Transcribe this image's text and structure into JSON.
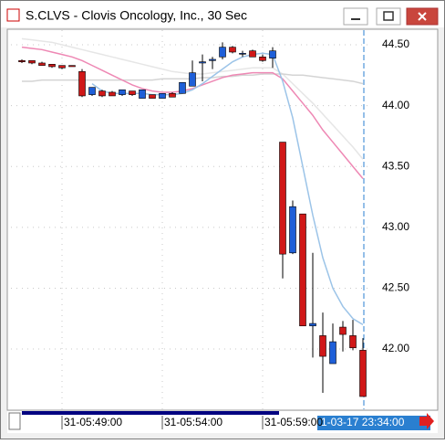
{
  "window_title": "S.CLVS - Clovis Oncology, Inc., 30 Sec",
  "cursor_label": "1-03-17 23:34:00",
  "chart_data": {
    "type": "candlestick",
    "categories": [
      null,
      null,
      null,
      null,
      "31-05:49:00",
      null,
      null,
      null,
      null,
      null,
      null,
      null,
      null,
      null,
      "31-05:54:00",
      null,
      null,
      null,
      null,
      null,
      null,
      null,
      null,
      null,
      "31-05:59:00",
      null,
      null,
      null,
      null,
      null,
      null,
      null,
      null,
      null,
      null
    ],
    "open": [
      44.37,
      44.37,
      44.35,
      44.34,
      44.33,
      44.33,
      44.28,
      44.09,
      44.12,
      44.11,
      44.09,
      44.12,
      44.06,
      44.09,
      44.06,
      44.1,
      44.1,
      44.16,
      44.35,
      44.37,
      44.4,
      44.48,
      44.43,
      44.45,
      44.4,
      44.39,
      43.7,
      42.79,
      43.11,
      42.19,
      42.11,
      41.88,
      42.18,
      42.11,
      41.99
    ],
    "high": [
      44.38,
      44.37,
      44.36,
      44.34,
      44.33,
      44.33,
      44.3,
      44.15,
      44.13,
      44.12,
      44.13,
      44.12,
      44.13,
      44.09,
      44.1,
      44.11,
      44.19,
      44.37,
      44.42,
      44.4,
      44.52,
      44.49,
      44.45,
      44.46,
      44.42,
      44.48,
      43.7,
      43.22,
      43.11,
      42.79,
      42.3,
      42.21,
      42.23,
      42.24,
      42.09
    ],
    "low": [
      44.35,
      44.34,
      44.33,
      44.31,
      44.3,
      44.32,
      44.07,
      44.08,
      44.07,
      44.08,
      44.08,
      44.08,
      44.06,
      44.06,
      44.06,
      44.07,
      44.1,
      44.16,
      44.2,
      44.3,
      44.38,
      44.43,
      44.4,
      44.4,
      44.36,
      44.31,
      42.58,
      42.78,
      42.19,
      41.93,
      41.64,
      41.88,
      41.98,
      41.99,
      41.61
    ],
    "close": [
      44.36,
      44.35,
      44.33,
      44.32,
      44.31,
      44.32,
      44.08,
      44.15,
      44.08,
      44.08,
      44.13,
      44.09,
      44.13,
      44.06,
      44.1,
      44.07,
      44.19,
      44.27,
      44.36,
      44.38,
      44.48,
      44.44,
      44.43,
      44.4,
      44.37,
      44.45,
      42.78,
      43.17,
      42.19,
      42.21,
      41.94,
      42.06,
      42.12,
      42.01,
      41.61
    ],
    "up_color": "#1e5fd8",
    "down_color": "#d01818",
    "lines": [
      {
        "color": "#e6e6e6",
        "values": [
          44.55,
          44.54,
          44.53,
          44.52,
          44.5,
          44.48,
          44.46,
          44.44,
          44.42,
          44.4,
          44.38,
          44.36,
          44.34,
          44.32,
          44.3,
          44.28,
          44.27,
          44.26,
          44.26,
          44.27,
          44.28,
          44.29,
          44.3,
          44.31,
          44.31,
          44.31,
          44.26,
          44.18,
          44.1,
          44.02,
          43.93,
          43.84,
          43.75,
          43.66,
          43.56
        ]
      },
      {
        "color": "#d4d4d4",
        "values": [
          44.2,
          44.2,
          44.21,
          44.21,
          44.21,
          44.21,
          44.21,
          44.21,
          44.21,
          44.21,
          44.21,
          44.21,
          44.21,
          44.21,
          44.22,
          44.22,
          44.22,
          44.22,
          44.23,
          44.23,
          44.24,
          44.24,
          44.25,
          44.25,
          44.26,
          44.26,
          44.26,
          44.25,
          44.25,
          44.24,
          44.23,
          44.22,
          44.21,
          44.2,
          44.18
        ]
      },
      {
        "color": "#ee88b4",
        "values": [
          44.48,
          44.47,
          44.46,
          44.44,
          44.42,
          44.4,
          44.37,
          44.33,
          44.29,
          44.25,
          44.21,
          44.17,
          44.14,
          44.12,
          44.11,
          44.11,
          44.12,
          44.14,
          44.17,
          44.2,
          44.23,
          44.25,
          44.26,
          44.27,
          44.27,
          44.27,
          44.22,
          44.12,
          44.02,
          43.92,
          43.8,
          43.7,
          43.6,
          43.5,
          43.4
        ]
      },
      {
        "color": "#9cc4e8",
        "values": [
          null,
          null,
          null,
          null,
          null,
          null,
          null,
          44.18,
          44.12,
          44.1,
          44.1,
          44.1,
          44.1,
          44.09,
          44.09,
          44.09,
          44.1,
          44.13,
          44.18,
          44.24,
          44.3,
          44.36,
          44.4,
          44.42,
          44.43,
          44.42,
          44.2,
          43.9,
          43.5,
          43.1,
          42.75,
          42.5,
          42.35,
          42.25,
          42.2
        ]
      }
    ],
    "ylim": [
      41.505,
      44.62
    ],
    "yticks": [
      {
        "value": 42,
        "label": "42.00"
      },
      {
        "value": 42.5,
        "label": "42.50"
      },
      {
        "value": 43,
        "label": "43.00"
      },
      {
        "value": 43.5,
        "label": "43.50"
      },
      {
        "value": 44,
        "label": "44.00"
      },
      {
        "value": 44.5,
        "label": "44.50"
      }
    ],
    "grid": true
  }
}
